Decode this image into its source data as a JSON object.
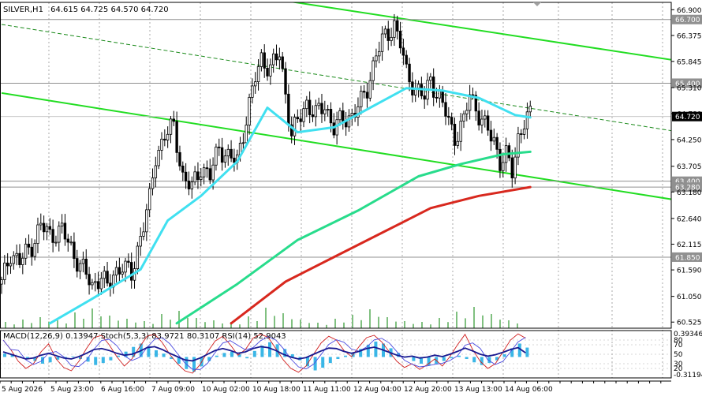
{
  "window": {
    "symbol_title": "SILVER,H1",
    "ohlc": "64.615 64.725 64.570 64.720"
  },
  "chart_data": {
    "type": "candlestick",
    "instrument": "SILVER",
    "timeframe": "H1",
    "y_range": [
      60.4,
      67.05
    ],
    "y_ticks": [
      "66.900",
      "66.375",
      "65.845",
      "65.310",
      "64.780",
      "64.250",
      "63.705",
      "63.180",
      "62.640",
      "62.115",
      "61.590",
      "61.050",
      "60.525"
    ],
    "x_ticks": [
      "5 Aug 2026",
      "5 Aug 23:00",
      "6 Aug 16:00",
      "7 Aug 09:00",
      "10 Aug 02:00",
      "10 Aug 18:00",
      "11 Aug 11:00",
      "12 Aug 04:00",
      "12 Aug 20:00",
      "13 Aug 13:00",
      "14 Aug 06:00"
    ],
    "price_tag": {
      "label": "64.720",
      "value": 64.72,
      "color": "#000000"
    },
    "levels": [
      {
        "label": "66.700",
        "value": 66.7
      },
      {
        "label": "65.400",
        "value": 65.4
      },
      {
        "label": "63.400",
        "value": 63.4
      },
      {
        "label": "63.280",
        "value": 63.28
      },
      {
        "label": "61.850",
        "value": 61.85
      }
    ],
    "price_path": [
      {
        "i": 0,
        "p": 61.3
      },
      {
        "i": 3,
        "p": 61.95
      },
      {
        "i": 6,
        "p": 61.75
      },
      {
        "i": 10,
        "p": 62.1
      },
      {
        "i": 13,
        "p": 62.5
      },
      {
        "i": 16,
        "p": 62.3
      },
      {
        "i": 20,
        "p": 62.4
      },
      {
        "i": 24,
        "p": 61.9
      },
      {
        "i": 27,
        "p": 61.6
      },
      {
        "i": 30,
        "p": 61.25
      },
      {
        "i": 33,
        "p": 61.5
      },
      {
        "i": 35,
        "p": 61.2
      },
      {
        "i": 37,
        "p": 61.5
      },
      {
        "i": 40,
        "p": 61.7
      },
      {
        "i": 43,
        "p": 61.45
      },
      {
        "i": 46,
        "p": 62.3
      },
      {
        "i": 49,
        "p": 63.0
      },
      {
        "i": 51,
        "p": 63.9
      },
      {
        "i": 54,
        "p": 64.35
      },
      {
        "i": 57,
        "p": 64.5
      },
      {
        "i": 60,
        "p": 63.5
      },
      {
        "i": 63,
        "p": 63.25
      },
      {
        "i": 66,
        "p": 63.7
      },
      {
        "i": 69,
        "p": 63.5
      },
      {
        "i": 72,
        "p": 64.1
      },
      {
        "i": 75,
        "p": 63.9
      },
      {
        "i": 78,
        "p": 63.8
      },
      {
        "i": 81,
        "p": 64.7
      },
      {
        "i": 84,
        "p": 65.5
      },
      {
        "i": 86,
        "p": 65.9
      },
      {
        "i": 89,
        "p": 65.7
      },
      {
        "i": 92,
        "p": 66.0
      },
      {
        "i": 94,
        "p": 65.2
      },
      {
        "i": 96,
        "p": 64.35
      },
      {
        "i": 98,
        "p": 64.6
      },
      {
        "i": 101,
        "p": 65.0
      },
      {
        "i": 104,
        "p": 64.75
      },
      {
        "i": 107,
        "p": 64.95
      },
      {
        "i": 110,
        "p": 64.5
      },
      {
        "i": 113,
        "p": 64.65
      },
      {
        "i": 116,
        "p": 64.75
      },
      {
        "i": 119,
        "p": 65.0
      },
      {
        "i": 121,
        "p": 65.3
      },
      {
        "i": 124,
        "p": 66.0
      },
      {
        "i": 127,
        "p": 66.35
      },
      {
        "i": 130,
        "p": 66.6
      },
      {
        "i": 132,
        "p": 66.2
      },
      {
        "i": 134,
        "p": 65.6
      },
      {
        "i": 137,
        "p": 65.3
      },
      {
        "i": 140,
        "p": 65.1
      },
      {
        "i": 142,
        "p": 65.5
      },
      {
        "i": 144,
        "p": 65.2
      },
      {
        "i": 147,
        "p": 64.8
      },
      {
        "i": 150,
        "p": 64.3
      },
      {
        "i": 153,
        "p": 64.6
      },
      {
        "i": 155,
        "p": 65.2
      },
      {
        "i": 157,
        "p": 64.9
      },
      {
        "i": 160,
        "p": 64.5
      },
      {
        "i": 163,
        "p": 64.25
      },
      {
        "i": 165,
        "p": 63.8
      },
      {
        "i": 167,
        "p": 63.9
      },
      {
        "i": 169,
        "p": 63.6
      },
      {
        "i": 171,
        "p": 64.3
      },
      {
        "i": 173,
        "p": 64.6
      },
      {
        "i": 175,
        "p": 64.72
      }
    ],
    "moving_averages": [
      {
        "name": "cyan",
        "color": "#40e0f0",
        "points": [
          [
            16,
            60.5
          ],
          [
            30,
            61.0
          ],
          [
            46,
            61.6
          ],
          [
            55,
            62.6
          ],
          [
            66,
            63.1
          ],
          [
            78,
            63.8
          ],
          [
            88,
            64.9
          ],
          [
            98,
            64.4
          ],
          [
            110,
            64.5
          ],
          [
            122,
            64.9
          ],
          [
            134,
            65.3
          ],
          [
            146,
            65.25
          ],
          [
            158,
            65.1
          ],
          [
            170,
            64.75
          ],
          [
            175,
            64.7
          ]
        ]
      },
      {
        "name": "aquamarine",
        "color": "#28dc8c",
        "points": [
          [
            58,
            60.5
          ],
          [
            78,
            61.3
          ],
          [
            98,
            62.2
          ],
          [
            118,
            62.8
          ],
          [
            138,
            63.5
          ],
          [
            152,
            63.75
          ],
          [
            166,
            63.95
          ],
          [
            175,
            64.0
          ]
        ]
      },
      {
        "name": "red",
        "color": "#d8281e",
        "points": [
          [
            76,
            60.5
          ],
          [
            94,
            61.35
          ],
          [
            110,
            61.85
          ],
          [
            126,
            62.35
          ],
          [
            142,
            62.85
          ],
          [
            158,
            63.1
          ],
          [
            175,
            63.28
          ]
        ]
      }
    ],
    "trend_lines": [
      {
        "name": "channel-upper",
        "color": "#22dd22",
        "from": [
          92,
          67.1
        ],
        "to": [
          230,
          65.8
        ]
      },
      {
        "name": "channel-lower",
        "color": "#22dd22",
        "from": [
          0,
          65.2
        ],
        "to": [
          230,
          62.95
        ]
      },
      {
        "name": "dashed-trend",
        "color": "#1a8a1a",
        "dash": true,
        "from": [
          0,
          66.6
        ],
        "to": [
          230,
          64.35
        ]
      }
    ],
    "volume": [
      8,
      11,
      14,
      10,
      20,
      25,
      16,
      12,
      9,
      18,
      22,
      13,
      10,
      8,
      15,
      26,
      19,
      11,
      7,
      12,
      17,
      24,
      14,
      9,
      8,
      13,
      21,
      27,
      18,
      10
    ],
    "indicator": {
      "legend": "MACD(12,26,9) 0.13947  Stoch(5,3,3) 83.9721 80.3107  RSI(14) 52.9043",
      "y_labels": [
        "0.39346",
        "80",
        "70",
        "50",
        "30",
        "20",
        "-0.31194"
      ],
      "macd_hist": [
        0.05,
        0.03,
        0.01,
        -0.02,
        -0.06,
        -0.1,
        -0.08,
        -0.04,
        -0.02,
        0.01,
        -0.03,
        -0.07,
        -0.12,
        -0.09,
        -0.05,
        0.02,
        0.08,
        0.15,
        0.2,
        0.16,
        0.1,
        0.05,
        -0.03,
        -0.1,
        -0.18,
        -0.22,
        -0.14,
        -0.06,
        0.02,
        0.06,
        0.08,
        0.04,
        -0.02,
        0.09,
        0.17,
        0.22,
        0.19,
        0.12,
        0.04,
        -0.05,
        -0.14,
        -0.2,
        -0.16,
        -0.09,
        -0.03,
        0.02,
        0.07,
        0.12,
        0.18,
        0.23,
        0.2,
        0.13,
        0.06,
        0.0,
        -0.06,
        -0.1,
        -0.13,
        -0.1,
        -0.06,
        -0.02,
        0.02,
        -0.03,
        -0.08,
        -0.12,
        -0.09,
        -0.05,
        0.04,
        0.13,
        0.2,
        0.14
      ],
      "stoch_k": [
        80,
        60,
        35,
        20,
        30,
        55,
        72,
        40,
        22,
        15,
        35,
        62,
        85,
        90,
        70,
        45,
        25,
        40,
        65,
        88,
        92,
        75,
        50,
        30,
        15,
        10,
        28,
        55,
        78,
        88,
        70,
        48,
        60,
        84,
        92,
        86,
        62,
        38,
        20,
        12,
        25,
        50,
        74,
        88,
        80,
        58,
        45,
        66,
        85,
        90,
        76,
        55,
        35,
        22,
        30,
        18,
        28,
        40,
        25,
        45,
        70,
        92,
        60,
        35,
        20,
        30,
        55,
        80,
        93,
        84
      ],
      "rsi": [
        55,
        50,
        45,
        40,
        42,
        48,
        52,
        47,
        42,
        40,
        45,
        52,
        60,
        62,
        58,
        52,
        48,
        50,
        56,
        64,
        66,
        60,
        52,
        45,
        38,
        36,
        42,
        50,
        58,
        62,
        58,
        52,
        55,
        62,
        66,
        64,
        58,
        50,
        44,
        40,
        43,
        50,
        57,
        63,
        62,
        56,
        52,
        56,
        62,
        65,
        60,
        54,
        48,
        44,
        46,
        42,
        44,
        48,
        45,
        50,
        56,
        63,
        57,
        50,
        46,
        49,
        54,
        60,
        64,
        53
      ]
    }
  }
}
